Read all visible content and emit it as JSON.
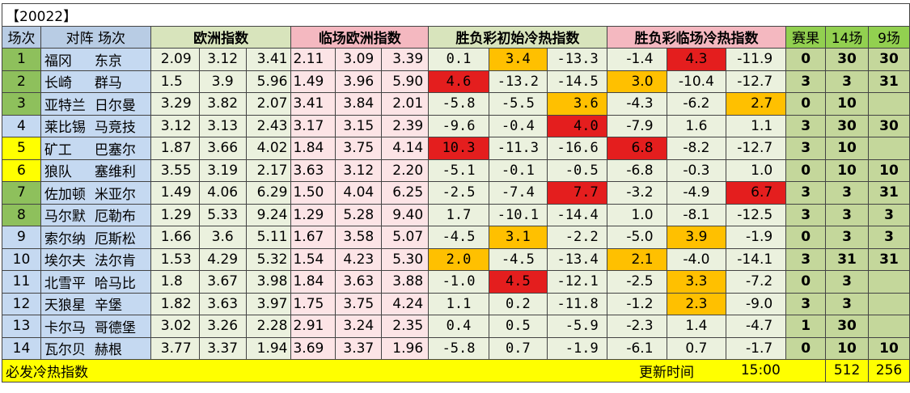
{
  "title": "【20022】",
  "headers": {
    "idx": "场次",
    "teams": "对阵 场次",
    "european": "欧洲指数",
    "live_european": "临场欧洲指数",
    "initial_cold_hot": "胜负彩初始冷热指数",
    "live_cold_hot": "胜负彩临场冷热指数",
    "result": "赛果",
    "r14": "14场",
    "r9": "9场"
  },
  "colors": {
    "header_blue": "#b8cce4",
    "header_green": "#d8e4bc",
    "header_pink": "#f4b8c0",
    "result_green": "#92d050",
    "hot_red": "#e41e1e",
    "hot_orange": "#ffc000",
    "footer_yellow": "#ffff00"
  },
  "rows": [
    {
      "idx": "1",
      "idx_color": "green",
      "home": "福冈",
      "away": "东京",
      "eu": [
        "2.09",
        "3.12",
        "3.41"
      ],
      "live_eu": [
        "2.11",
        "3.09",
        "3.39"
      ],
      "init": [
        "0.1",
        "3.4",
        "-13.3"
      ],
      "init_hl": [
        "",
        "orange",
        ""
      ],
      "live": [
        "-1.4",
        "4.3",
        "-11.9"
      ],
      "live_hl": [
        "",
        "red",
        ""
      ],
      "result": "0",
      "r14": "30",
      "r9": "30"
    },
    {
      "idx": "2",
      "idx_color": "green",
      "home": "长崎",
      "away": "群马",
      "eu": [
        "1.5",
        "3.9",
        "5.96"
      ],
      "live_eu": [
        "1.49",
        "3.96",
        "5.90"
      ],
      "init": [
        "4.6",
        "-13.2",
        "-14.5"
      ],
      "init_hl": [
        "red",
        "",
        ""
      ],
      "live": [
        "3.0",
        "-10.4",
        "-12.7"
      ],
      "live_hl": [
        "orange",
        "",
        ""
      ],
      "result": "3",
      "r14": "3",
      "r9": "31"
    },
    {
      "idx": "3",
      "idx_color": "green",
      "home": "亚特兰",
      "away": "日尔曼",
      "eu": [
        "3.29",
        "3.82",
        "2.07"
      ],
      "live_eu": [
        "3.41",
        "3.84",
        "2.01"
      ],
      "init": [
        "-5.8",
        "-5.5",
        "3.6"
      ],
      "init_hl": [
        "",
        "",
        "orange"
      ],
      "live": [
        "-4.3",
        "-6.2",
        "2.7"
      ],
      "live_hl": [
        "",
        "",
        "orange"
      ],
      "result": "0",
      "r14": "10",
      "r9": ""
    },
    {
      "idx": "4",
      "idx_color": "blue",
      "home": "莱比锡",
      "away": "马竞技",
      "eu": [
        "3.12",
        "3.13",
        "2.43"
      ],
      "live_eu": [
        "3.17",
        "3.15",
        "2.39"
      ],
      "init": [
        "-9.6",
        "-0.4",
        "4.0"
      ],
      "init_hl": [
        "",
        "",
        "red"
      ],
      "live": [
        "-7.9",
        "1.6",
        "1.1"
      ],
      "live_hl": [
        "",
        "",
        ""
      ],
      "result": "3",
      "r14": "30",
      "r9": "30"
    },
    {
      "idx": "5",
      "idx_color": "yellow",
      "home": "矿工",
      "away": "巴塞尔",
      "eu": [
        "1.87",
        "3.66",
        "4.02"
      ],
      "live_eu": [
        "1.84",
        "3.75",
        "4.14"
      ],
      "init": [
        "10.3",
        "-11.3",
        "-16.6"
      ],
      "init_hl": [
        "red",
        "",
        ""
      ],
      "live": [
        "6.8",
        "-8.2",
        "-12.7"
      ],
      "live_hl": [
        "red",
        "",
        ""
      ],
      "result": "3",
      "r14": "10",
      "r9": ""
    },
    {
      "idx": "6",
      "idx_color": "yellow",
      "home": "狼队",
      "away": "塞维利",
      "eu": [
        "3.55",
        "3.19",
        "2.17"
      ],
      "live_eu": [
        "3.63",
        "3.12",
        "2.20"
      ],
      "init": [
        "-5.1",
        "-0.1",
        "-0.5"
      ],
      "init_hl": [
        "",
        "",
        ""
      ],
      "live": [
        "-6.8",
        "-0.3",
        "1.0"
      ],
      "live_hl": [
        "",
        "",
        ""
      ],
      "result": "0",
      "r14": "10",
      "r9": "10"
    },
    {
      "idx": "7",
      "idx_color": "green",
      "home": "佐加顿",
      "away": "米亚尔",
      "eu": [
        "1.49",
        "4.06",
        "6.29"
      ],
      "live_eu": [
        "1.50",
        "4.04",
        "6.25"
      ],
      "init": [
        "-2.5",
        "-7.4",
        "7.7"
      ],
      "init_hl": [
        "",
        "",
        "red"
      ],
      "live": [
        "-3.2",
        "-4.9",
        "6.7"
      ],
      "live_hl": [
        "",
        "",
        "red"
      ],
      "result": "3",
      "r14": "3",
      "r9": "31"
    },
    {
      "idx": "8",
      "idx_color": "green",
      "home": "马尔默",
      "away": "厄勒布",
      "eu": [
        "1.29",
        "5.33",
        "9.24"
      ],
      "live_eu": [
        "1.29",
        "5.28",
        "9.40"
      ],
      "init": [
        "1.7",
        "-10.1",
        "-14.4"
      ],
      "init_hl": [
        "",
        "",
        ""
      ],
      "live": [
        "1.0",
        "-8.1",
        "-12.5"
      ],
      "live_hl": [
        "",
        "",
        ""
      ],
      "result": "3",
      "r14": "3",
      "r9": "3"
    },
    {
      "idx": "9",
      "idx_color": "blue",
      "home": "索尔纳",
      "away": "厄斯松",
      "eu": [
        "1.66",
        "3.6",
        "5.11"
      ],
      "live_eu": [
        "1.67",
        "3.58",
        "5.07"
      ],
      "init": [
        "-4.5",
        "3.1",
        "-2.2"
      ],
      "init_hl": [
        "",
        "orange",
        ""
      ],
      "live": [
        "-5.0",
        "3.9",
        "-1.9"
      ],
      "live_hl": [
        "",
        "orange",
        ""
      ],
      "result": "0",
      "r14": "3",
      "r9": "3"
    },
    {
      "idx": "10",
      "idx_color": "blue",
      "home": "埃尔夫",
      "away": "法尔肯",
      "eu": [
        "1.53",
        "4.29",
        "5.32"
      ],
      "live_eu": [
        "1.54",
        "4.23",
        "5.30"
      ],
      "init": [
        "2.0",
        "-4.5",
        "-13.4"
      ],
      "init_hl": [
        "orange",
        "",
        ""
      ],
      "live": [
        "2.1",
        "-4.0",
        "-14.1"
      ],
      "live_hl": [
        "orange",
        "",
        ""
      ],
      "result": "3",
      "r14": "31",
      "r9": "31"
    },
    {
      "idx": "11",
      "idx_color": "blue",
      "home": "北雪平",
      "away": "哈马比",
      "eu": [
        "1.8",
        "3.67",
        "3.98"
      ],
      "live_eu": [
        "1.84",
        "3.63",
        "3.88"
      ],
      "init": [
        "-1.0",
        "4.5",
        "-12.1"
      ],
      "init_hl": [
        "",
        "red",
        ""
      ],
      "live": [
        "-2.5",
        "3.3",
        "-7.2"
      ],
      "live_hl": [
        "",
        "orange",
        ""
      ],
      "result": "0",
      "r14": "3",
      "r9": ""
    },
    {
      "idx": "12",
      "idx_color": "blue",
      "home": "天狼星",
      "away": "辛堡",
      "eu": [
        "1.82",
        "3.63",
        "3.97"
      ],
      "live_eu": [
        "1.75",
        "3.75",
        "4.24"
      ],
      "init": [
        "1.1",
        "0.2",
        "-11.8"
      ],
      "init_hl": [
        "",
        "",
        ""
      ],
      "live": [
        "-1.2",
        "2.3",
        "-9.0"
      ],
      "live_hl": [
        "",
        "orange",
        ""
      ],
      "result": "3",
      "r14": "3",
      "r9": ""
    },
    {
      "idx": "13",
      "idx_color": "blue",
      "home": "卡尔马",
      "away": "哥德堡",
      "eu": [
        "3.02",
        "3.26",
        "2.28"
      ],
      "live_eu": [
        "2.91",
        "3.24",
        "2.35"
      ],
      "init": [
        "0.4",
        "0.5",
        "-5.9"
      ],
      "init_hl": [
        "",
        "",
        ""
      ],
      "live": [
        "-2.3",
        "1.4",
        "-4.7"
      ],
      "live_hl": [
        "",
        "",
        ""
      ],
      "result": "1",
      "r14": "30",
      "r9": ""
    },
    {
      "idx": "14",
      "idx_color": "blue",
      "home": "瓦尔贝",
      "away": "赫根",
      "eu": [
        "3.77",
        "3.37",
        "1.94"
      ],
      "live_eu": [
        "3.69",
        "3.37",
        "1.96"
      ],
      "init": [
        "-5.8",
        "0.7",
        "-1.9"
      ],
      "init_hl": [
        "",
        "",
        ""
      ],
      "live": [
        "-6.1",
        "0.7",
        "-1.7"
      ],
      "live_hl": [
        "",
        "",
        ""
      ],
      "result": "0",
      "r14": "10",
      "r9": "10"
    }
  ],
  "footer": {
    "left": "必发冷热指数",
    "update_label": "更新时间",
    "time": "15:00",
    "total14": "512",
    "total9": "256"
  }
}
